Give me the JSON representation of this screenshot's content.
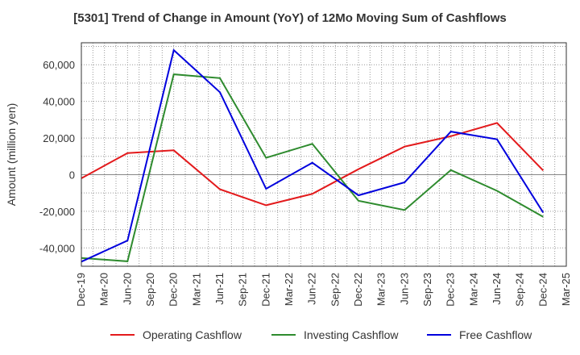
{
  "chart_data": {
    "type": "line",
    "title": "[5301]  Trend of Change in Amount (YoY) of 12Mo Moving Sum of Cashflows",
    "xlabel": "",
    "ylabel": "Amount (million yen)",
    "categories": [
      "Dec-19",
      "Mar-20",
      "Jun-20",
      "Sep-20",
      "Dec-20",
      "Mar-21",
      "Jun-21",
      "Sep-21",
      "Dec-21",
      "Mar-22",
      "Jun-22",
      "Sep-22",
      "Dec-22",
      "Mar-23",
      "Jun-23",
      "Sep-23",
      "Dec-23",
      "Mar-24",
      "Jun-24",
      "Sep-24",
      "Dec-24",
      "Mar-25"
    ],
    "ylim": [
      -50000,
      72000
    ],
    "yticks": [
      -40000,
      -20000,
      0,
      20000,
      40000,
      60000
    ],
    "ytick_labels": [
      "-40,000",
      "-20,000",
      "0",
      "20,000",
      "40,000",
      "60,000"
    ],
    "grid": true,
    "legend_position": "bottom",
    "series": [
      {
        "name": "Operating Cashflow",
        "color": "#e31a1c",
        "points": [
          [
            0,
            -2000
          ],
          [
            2,
            11800
          ],
          [
            4,
            13300
          ],
          [
            6,
            -8000
          ],
          [
            8,
            -16700
          ],
          [
            10,
            -10500
          ],
          [
            12,
            3000
          ],
          [
            14,
            15300
          ],
          [
            16,
            21000
          ],
          [
            18,
            28200
          ],
          [
            20,
            2300
          ]
        ]
      },
      {
        "name": "Investing Cashflow",
        "color": "#2e8b2e",
        "points": [
          [
            0,
            -45500
          ],
          [
            2,
            -47300
          ],
          [
            4,
            54800
          ],
          [
            6,
            52700
          ],
          [
            8,
            9200
          ],
          [
            10,
            16800
          ],
          [
            12,
            -14300
          ],
          [
            14,
            -19300
          ],
          [
            16,
            2500
          ],
          [
            18,
            -8800
          ],
          [
            20,
            -23000
          ]
        ]
      },
      {
        "name": "Free Cashflow",
        "color": "#0000dd",
        "points": [
          [
            0,
            -47500
          ],
          [
            2,
            -36000
          ],
          [
            4,
            68000
          ],
          [
            6,
            45000
          ],
          [
            8,
            -7700
          ],
          [
            10,
            6500
          ],
          [
            12,
            -11300
          ],
          [
            14,
            -4200
          ],
          [
            16,
            23500
          ],
          [
            18,
            19300
          ],
          [
            20,
            -20700
          ]
        ]
      }
    ]
  }
}
